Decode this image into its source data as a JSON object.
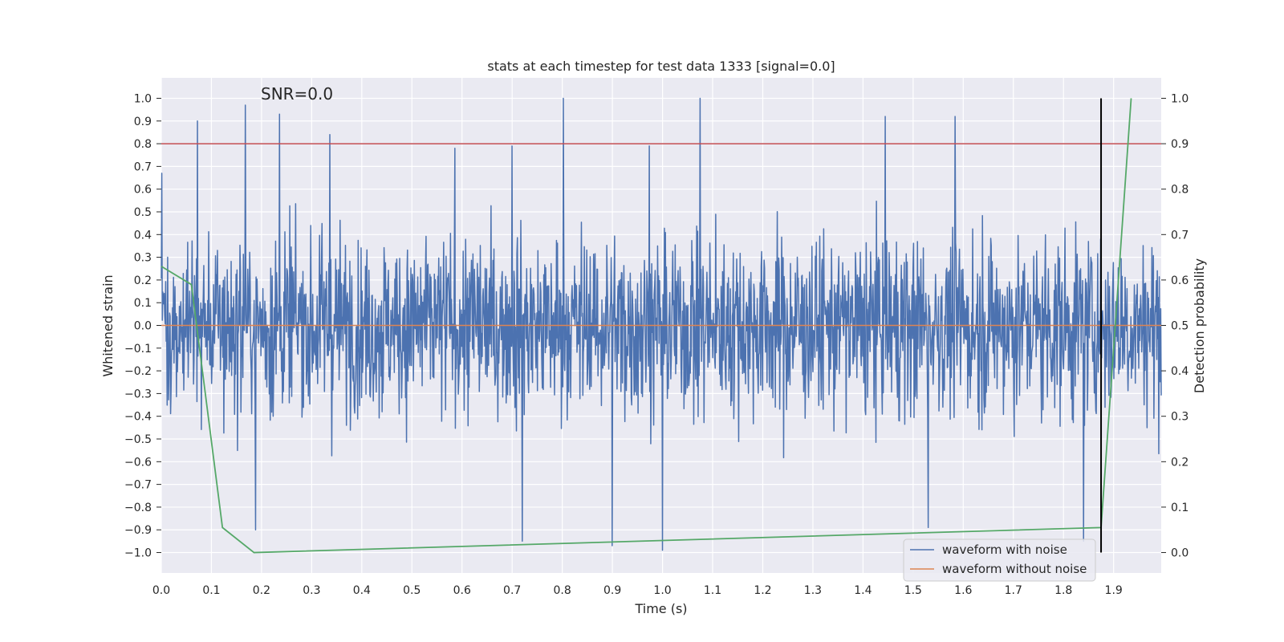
{
  "chart_data": {
    "type": "line",
    "title": "stats at each timestep for test data 1333 [signal=0.0]",
    "annotation": "SNR=0.0",
    "xlabel": "Time (s)",
    "ylabel_left": "Whitened strain",
    "ylabel_right": "Detection probability",
    "xlim": [
      0.0,
      1.995
    ],
    "ylim_left": [
      -1.09,
      1.09
    ],
    "ylim_right": [
      -0.045,
      1.045
    ],
    "x_ticks": [
      "0.0",
      "0.1",
      "0.2",
      "0.3",
      "0.4",
      "0.5",
      "0.6",
      "0.7",
      "0.8",
      "0.9",
      "1.0",
      "1.1",
      "1.2",
      "1.3",
      "1.4",
      "1.5",
      "1.6",
      "1.7",
      "1.8",
      "1.9"
    ],
    "y_left_ticks": [
      "1.0",
      "0.9",
      "0.8",
      "0.7",
      "0.6",
      "0.5",
      "0.4",
      "0.3",
      "0.2",
      "0.1",
      "0.0",
      "−0.1",
      "−0.2",
      "−0.3",
      "−0.4",
      "−0.5",
      "−0.6",
      "−0.7",
      "−0.8",
      "−0.9",
      "−1.0"
    ],
    "y_right_ticks": [
      "1.0",
      "0.9",
      "0.8",
      "0.7",
      "0.6",
      "0.5",
      "0.4",
      "0.3",
      "0.2",
      "0.1",
      "0.0"
    ],
    "threshold": {
      "axis": "right",
      "value": 0.9,
      "color": "#c44e52"
    },
    "vline": {
      "x": 1.875,
      "ymin": -1.0,
      "ymax": 1.0,
      "color": "#000000"
    },
    "series": [
      {
        "name": "waveform with noise",
        "color": "#4c72b0",
        "axis": "left",
        "kind": "noise",
        "x_range": [
          0.0,
          1.995
        ],
        "n_points": 2048,
        "amplitude_range": [
          -1.0,
          1.0
        ],
        "peaks": [
          [
            0.001,
            0.67
          ],
          [
            0.072,
            0.9
          ],
          [
            0.168,
            0.97
          ],
          [
            0.236,
            0.93
          ],
          [
            0.336,
            0.84
          ],
          [
            0.586,
            0.78
          ],
          [
            0.7,
            0.79
          ],
          [
            0.802,
            1.0
          ],
          [
            0.974,
            0.79
          ],
          [
            1.075,
            1.0
          ],
          [
            1.444,
            0.92
          ],
          [
            1.584,
            0.92
          ],
          [
            0.188,
            -0.9
          ],
          [
            0.72,
            -0.95
          ],
          [
            0.9,
            -0.97
          ],
          [
            1.0,
            -0.99
          ],
          [
            1.53,
            -0.89
          ],
          [
            1.84,
            -0.95
          ]
        ]
      },
      {
        "name": "waveform without noise",
        "color": "#dd8452",
        "axis": "left",
        "x": [
          0.0,
          1.995
        ],
        "y": [
          0.0,
          0.0
        ]
      },
      {
        "name": "detection probability",
        "color": "#55a868",
        "axis": "right",
        "x": [
          0.0,
          0.06,
          0.122,
          0.185,
          1.875,
          1.935
        ],
        "y": [
          0.63,
          0.59,
          0.055,
          0.0,
          0.055,
          1.0
        ]
      }
    ],
    "legend": {
      "position": "lower-right",
      "entries": [
        {
          "label": "waveform with noise",
          "color": "#4c72b0"
        },
        {
          "label": "waveform without noise",
          "color": "#dd8452"
        }
      ]
    }
  }
}
